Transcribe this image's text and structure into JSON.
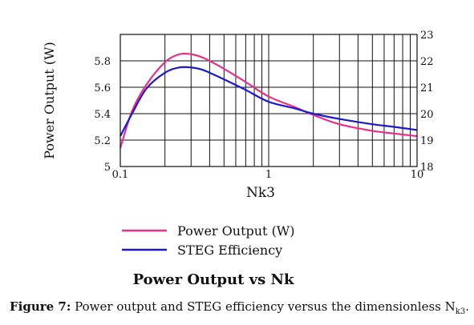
{
  "chart_data": {
    "type": "line",
    "x_scale": "log",
    "xlim": [
      0.1,
      10
    ],
    "ylim_left": [
      5.0,
      6.0
    ],
    "ylim_right": [
      18,
      23
    ],
    "grid": true,
    "colors": {
      "power": "#e8308a",
      "efficiency": "#1a1acc",
      "grid": "#111111",
      "axis_text": "#111111"
    },
    "x_ticks": [
      {
        "value": 0.1,
        "label": "0.1"
      },
      {
        "value": 1,
        "label": "1"
      },
      {
        "value": 10,
        "label": "10"
      }
    ],
    "y_left_ticks": [
      {
        "value": 5.0,
        "label": "5"
      },
      {
        "value": 5.2,
        "label": "5.2"
      },
      {
        "value": 5.4,
        "label": "5.4"
      },
      {
        "value": 5.6,
        "label": "5.6"
      },
      {
        "value": 5.8,
        "label": "5.8"
      }
    ],
    "y_right_ticks": [
      {
        "value": 18,
        "label": "18"
      },
      {
        "value": 19,
        "label": "19"
      },
      {
        "value": 20,
        "label": "20"
      },
      {
        "value": 21,
        "label": "21"
      },
      {
        "value": 22,
        "label": "22"
      },
      {
        "value": 23,
        "label": "23"
      }
    ],
    "ylabel_left": "Power Output (W)",
    "xlabel": "Nk3",
    "title": "Power Output vs Nk",
    "legend_position": "below-plot",
    "series": [
      {
        "name": "Power Output (W)",
        "axis": "left",
        "color": "#e8308a",
        "x": [
          0.1,
          0.12,
          0.15,
          0.2,
          0.25,
          0.3,
          0.35,
          0.4,
          0.5,
          0.7,
          1.0,
          1.5,
          2.0,
          3.0,
          5.0,
          7.0,
          10.0
        ],
        "y": [
          5.14,
          5.42,
          5.62,
          5.79,
          5.85,
          5.85,
          5.83,
          5.8,
          5.74,
          5.64,
          5.53,
          5.45,
          5.39,
          5.32,
          5.27,
          5.25,
          5.23
        ]
      },
      {
        "name": "STEG Efficiency",
        "axis": "right",
        "color": "#1a1acc",
        "x": [
          0.1,
          0.12,
          0.15,
          0.2,
          0.25,
          0.3,
          0.35,
          0.4,
          0.5,
          0.7,
          1.0,
          1.5,
          2.0,
          3.0,
          5.0,
          7.0,
          10.0
        ],
        "y": [
          19.15,
          20.0,
          20.95,
          21.55,
          21.75,
          21.75,
          21.68,
          21.55,
          21.3,
          20.9,
          20.45,
          20.2,
          20.0,
          19.8,
          19.6,
          19.5,
          19.38
        ]
      }
    ]
  },
  "figure_caption": {
    "label": "Figure 7:",
    "text_main": " Power output and STEG efficiency versus the dimensionless N",
    "subscript": "k3",
    "text_end": "."
  }
}
